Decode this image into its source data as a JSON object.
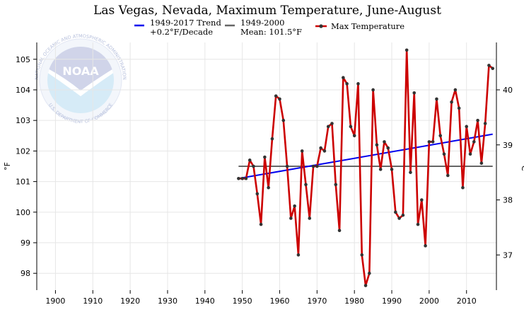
{
  "chart_data": {
    "type": "line",
    "title": "Las Vegas, Nevada, Maximum Temperature, June-August",
    "ylabel": "°F",
    "ylabel_right": "°C",
    "xlim": [
      1895,
      2018
    ],
    "ylim": [
      97.45,
      105.55
    ],
    "x_ticks": [
      1900,
      1910,
      1920,
      1930,
      1940,
      1950,
      1960,
      1970,
      1980,
      1990,
      2000,
      2010
    ],
    "y_ticks": [
      98,
      99,
      100,
      101,
      102,
      103,
      104,
      105
    ],
    "y_ticks_right_c": [
      37,
      38,
      39,
      40
    ],
    "grid": true,
    "legend_position": "top",
    "colors": {
      "max_temp": "#cc0000",
      "marker": "#333333",
      "trend": "#0000ee",
      "mean": "#666666"
    },
    "legend": {
      "trend_label": "1949-2017 Trend",
      "trend_value": "+0.2°F/Decade",
      "mean_label": "1949-2000",
      "mean_value": "Mean: 101.5°F",
      "series_label": "Max Temperature"
    },
    "series": [
      {
        "name": "Max Temperature",
        "x": [
          1949,
          1950,
          1951,
          1952,
          1953,
          1954,
          1955,
          1956,
          1957,
          1958,
          1959,
          1960,
          1961,
          1962,
          1963,
          1964,
          1965,
          1966,
          1967,
          1968,
          1969,
          1970,
          1971,
          1972,
          1973,
          1974,
          1975,
          1976,
          1977,
          1978,
          1979,
          1980,
          1981,
          1982,
          1983,
          1984,
          1985,
          1986,
          1987,
          1988,
          1989,
          1990,
          1991,
          1992,
          1993,
          1994,
          1995,
          1996,
          1997,
          1998,
          1999,
          2000,
          2001,
          2002,
          2003,
          2004,
          2005,
          2006,
          2007,
          2008,
          2009,
          2010,
          2011,
          2012,
          2013,
          2014,
          2015,
          2016,
          2017
        ],
        "values": [
          101.1,
          101.1,
          101.1,
          101.7,
          101.5,
          100.6,
          99.6,
          101.8,
          100.8,
          102.4,
          103.8,
          103.7,
          103.0,
          101.5,
          99.8,
          100.2,
          98.6,
          102.0,
          100.9,
          99.8,
          101.5,
          101.5,
          102.1,
          102.0,
          102.8,
          102.9,
          100.9,
          99.4,
          104.4,
          104.2,
          102.8,
          102.5,
          104.2,
          98.6,
          97.6,
          98.0,
          104.0,
          102.2,
          101.4,
          102.3,
          102.1,
          101.4,
          100.0,
          99.8,
          99.9,
          105.3,
          101.3,
          103.9,
          99.6,
          100.4,
          98.9,
          102.3,
          102.3,
          103.7,
          102.5,
          101.9,
          101.2,
          103.6,
          104.0,
          103.4,
          100.8,
          102.8,
          101.9,
          102.3,
          103.0,
          101.6,
          102.9,
          104.8,
          104.7
        ]
      }
    ],
    "trend": {
      "x": [
        1949,
        2017
      ],
      "values": [
        101.1,
        102.55
      ]
    },
    "mean": {
      "x": [
        1949,
        2017
      ],
      "value": 101.5
    }
  },
  "logo": {
    "name": "NOAA",
    "ring_text_top": "NATIONAL OCEANIC AND ATMOSPHERIC ADMINISTRATION",
    "ring_text_bottom": "U.S. DEPARTMENT OF COMMERCE"
  }
}
